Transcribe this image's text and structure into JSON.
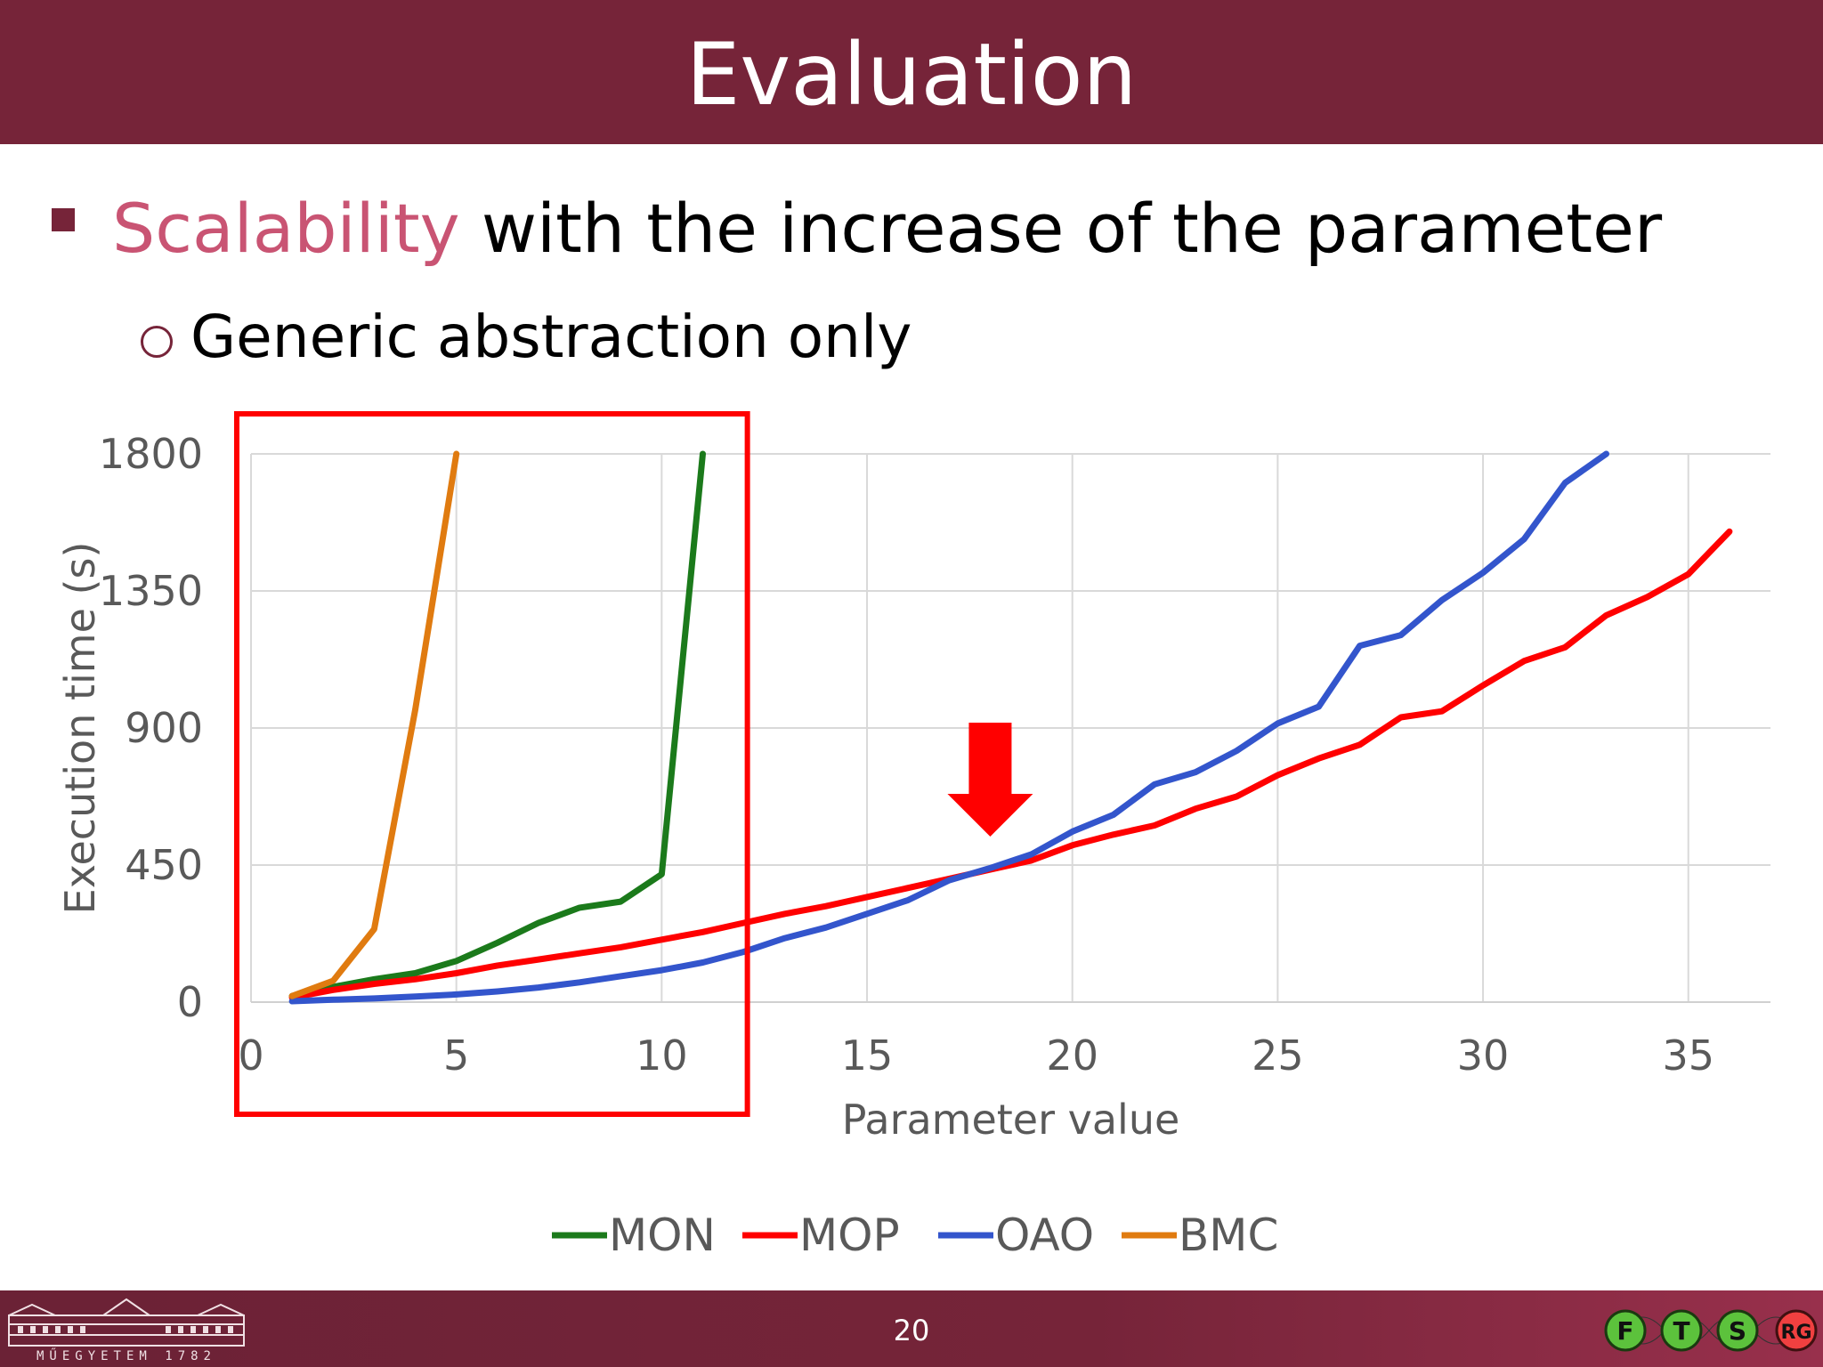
{
  "slide": {
    "title": "Evaluation",
    "bullet_highlight": "Scalability",
    "bullet_rest": " with the increase of the parameter",
    "sub_bullet": "Generic abstraction only",
    "page_number": "20",
    "logo_text": "MŰEGYETEM 1782",
    "ftsrg_letters": [
      "F",
      "T",
      "S",
      "RG"
    ]
  },
  "colors": {
    "header": "#762439",
    "highlight": "#c95473",
    "MON": "#1b7a1b",
    "MOP": "#ff0000",
    "OAO": "#3355cc",
    "BMC": "#e07b10",
    "annotation": "#ff0000"
  },
  "chart_data": {
    "type": "line",
    "title": "",
    "xlabel": "Parameter value",
    "ylabel": "Execution time (s)",
    "xlim": [
      0,
      37
    ],
    "ylim": [
      0,
      1800
    ],
    "xticks": [
      0,
      5,
      10,
      15,
      20,
      25,
      30,
      35
    ],
    "yticks": [
      0,
      450,
      900,
      1350,
      1800
    ],
    "grid": true,
    "legend": "bottom",
    "series": [
      {
        "name": "MON",
        "color": "#1b7a1b",
        "x": [
          1,
          2,
          3,
          4,
          5,
          6,
          7,
          8,
          9,
          10,
          11
        ],
        "y": [
          20,
          50,
          75,
          95,
          135,
          195,
          260,
          310,
          330,
          420,
          1800
        ]
      },
      {
        "name": "MOP",
        "color": "#ff0000",
        "x": [
          1,
          2,
          3,
          4,
          5,
          6,
          7,
          8,
          9,
          10,
          11,
          12,
          13,
          14,
          15,
          16,
          17,
          18,
          19,
          20,
          21,
          22,
          23,
          24,
          25,
          26,
          27,
          28,
          29,
          30,
          31,
          32,
          33,
          34,
          35,
          36
        ],
        "y": [
          15,
          40,
          60,
          75,
          95,
          120,
          140,
          160,
          180,
          205,
          230,
          260,
          290,
          315,
          345,
          375,
          405,
          435,
          465,
          515,
          550,
          580,
          635,
          675,
          745,
          800,
          845,
          935,
          955,
          1040,
          1120,
          1165,
          1270,
          1330,
          1405,
          1545
        ]
      },
      {
        "name": "OAO",
        "color": "#3355cc",
        "x": [
          1,
          2,
          3,
          4,
          5,
          6,
          7,
          8,
          9,
          10,
          11,
          12,
          13,
          14,
          15,
          16,
          17,
          18,
          19,
          20,
          21,
          22,
          23,
          24,
          25,
          26,
          27,
          28,
          29,
          30,
          31,
          32,
          33
        ],
        "y": [
          3,
          8,
          12,
          18,
          25,
          35,
          48,
          65,
          85,
          105,
          130,
          165,
          210,
          245,
          290,
          335,
          400,
          440,
          485,
          560,
          615,
          715,
          755,
          825,
          915,
          970,
          1170,
          1205,
          1320,
          1410,
          1520,
          1705,
          1800
        ]
      },
      {
        "name": "BMC",
        "color": "#e07b10",
        "x": [
          1,
          2,
          3,
          4,
          5
        ],
        "y": [
          20,
          70,
          240,
          960,
          1800
        ]
      }
    ],
    "annotations": [
      {
        "type": "highlight-box",
        "x_range": [
          0,
          12
        ]
      },
      {
        "type": "down-arrow",
        "x": 18
      }
    ]
  }
}
